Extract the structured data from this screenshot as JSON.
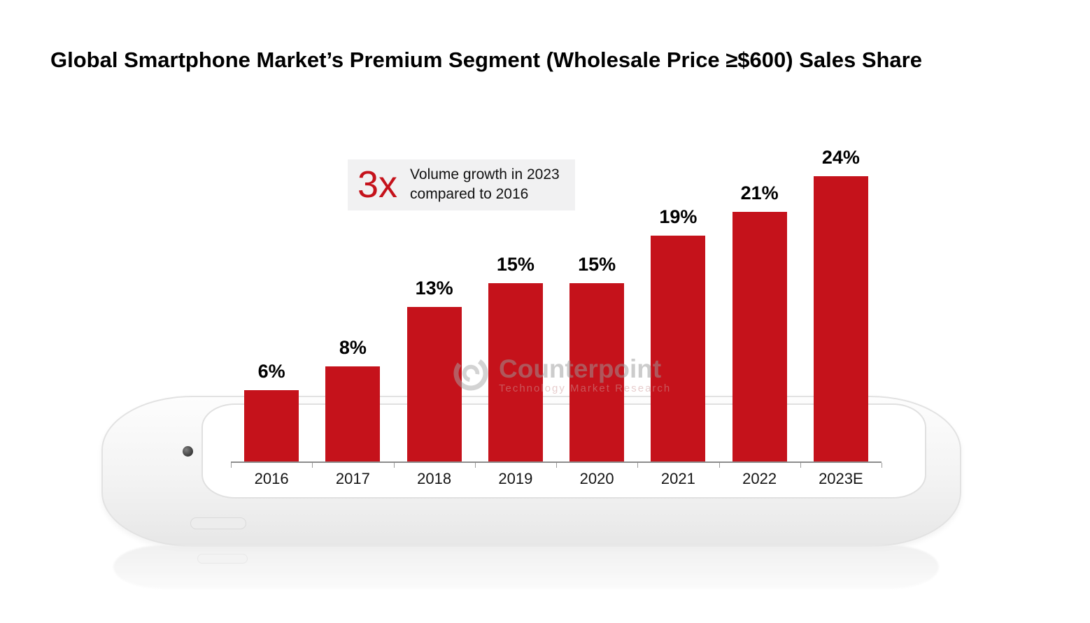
{
  "title": "Global Smartphone Market’s Premium Segment (Wholesale Price ≥$600) Sales Share",
  "annotation": {
    "multiplier": "3x",
    "line1": "Volume growth in 2023",
    "line2": "compared to 2016"
  },
  "watermark": {
    "brand": "Counterpoint",
    "subtitle": "Technology Market Research"
  },
  "colors": {
    "bar_red": "#C5121B",
    "axis_gray": "#8c8c8c",
    "annotation_bg": "#f1f1f2"
  },
  "chart_data": {
    "type": "bar",
    "title": "Global Smartphone Market’s Premium Segment (Wholesale Price ≥$600) Sales Share",
    "categories": [
      "2016",
      "2017",
      "2018",
      "2019",
      "2020",
      "2021",
      "2022",
      "2023E"
    ],
    "values": [
      6,
      8,
      13,
      15,
      15,
      19,
      21,
      24
    ],
    "unit": "%",
    "data_labels": [
      "6%",
      "8%",
      "13%",
      "15%",
      "15%",
      "19%",
      "21%",
      "24%"
    ],
    "xlabel": "",
    "ylabel": "",
    "ylim": [
      0,
      26
    ],
    "grid": false,
    "legend": "none",
    "bar_color": "#C5121B",
    "annotation_text": "3x Volume growth in 2023 compared to 2016"
  }
}
